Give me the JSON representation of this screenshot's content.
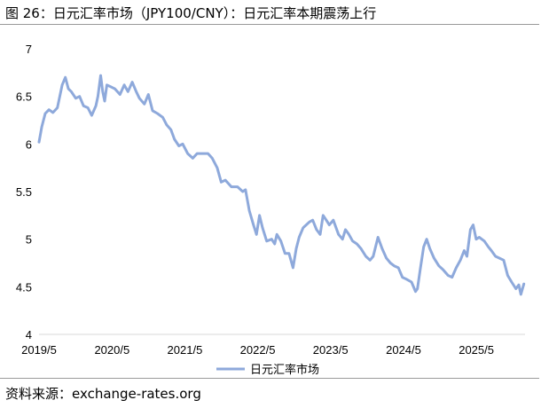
{
  "page": {
    "title": "图 26：日元汇率市场（JPY100/CNY）：日元汇率本期震荡上行",
    "source": "资料来源：exchange-rates.org"
  },
  "chart_data": {
    "type": "line",
    "title": "",
    "xlabel": "",
    "ylabel": "",
    "ylim": [
      4,
      7
    ],
    "y_ticks": [
      "4",
      "4.5",
      "5",
      "5.5",
      "6",
      "6.5",
      "7"
    ],
    "x_ticks": [
      "2019/5",
      "2020/5",
      "2021/5",
      "2022/5",
      "2023/5",
      "2024/5",
      "2025/5"
    ],
    "x_range": [
      "2019-05",
      "2025-12"
    ],
    "legend": {
      "position": "bottom"
    },
    "grid": false,
    "colors": {
      "line": "#8ea9db",
      "axis": "#d9d9d9",
      "text": "#000000"
    },
    "series": [
      {
        "name": "日元汇率市场",
        "points": [
          [
            "2019-05-01",
            6.02
          ],
          [
            "2019-05-15",
            6.18
          ],
          [
            "2019-06-01",
            6.32
          ],
          [
            "2019-06-20",
            6.36
          ],
          [
            "2019-07-10",
            6.33
          ],
          [
            "2019-08-01",
            6.38
          ],
          [
            "2019-08-25",
            6.62
          ],
          [
            "2019-09-10",
            6.7
          ],
          [
            "2019-09-25",
            6.58
          ],
          [
            "2019-10-10",
            6.55
          ],
          [
            "2019-11-01",
            6.48
          ],
          [
            "2019-11-20",
            6.5
          ],
          [
            "2019-12-10",
            6.4
          ],
          [
            "2020-01-01",
            6.38
          ],
          [
            "2020-01-20",
            6.3
          ],
          [
            "2020-02-10",
            6.4
          ],
          [
            "2020-02-20",
            6.5
          ],
          [
            "2020-03-05",
            6.72
          ],
          [
            "2020-03-15",
            6.55
          ],
          [
            "2020-03-25",
            6.45
          ],
          [
            "2020-04-05",
            6.62
          ],
          [
            "2020-04-25",
            6.6
          ],
          [
            "2020-05-15",
            6.58
          ],
          [
            "2020-06-10",
            6.52
          ],
          [
            "2020-07-01",
            6.62
          ],
          [
            "2020-07-20",
            6.55
          ],
          [
            "2020-08-10",
            6.65
          ],
          [
            "2020-08-30",
            6.55
          ],
          [
            "2020-09-15",
            6.48
          ],
          [
            "2020-10-10",
            6.42
          ],
          [
            "2020-10-30",
            6.52
          ],
          [
            "2020-11-20",
            6.35
          ],
          [
            "2020-12-15",
            6.32
          ],
          [
            "2021-01-10",
            6.28
          ],
          [
            "2021-01-30",
            6.2
          ],
          [
            "2021-02-20",
            6.15
          ],
          [
            "2021-03-10",
            6.05
          ],
          [
            "2021-04-01",
            5.98
          ],
          [
            "2021-04-20",
            6.0
          ],
          [
            "2021-05-15",
            5.9
          ],
          [
            "2021-06-10",
            5.85
          ],
          [
            "2021-07-01",
            5.9
          ],
          [
            "2021-08-01",
            5.9
          ],
          [
            "2021-08-25",
            5.9
          ],
          [
            "2021-09-15",
            5.85
          ],
          [
            "2021-10-10",
            5.75
          ],
          [
            "2021-10-30",
            5.6
          ],
          [
            "2021-11-20",
            5.62
          ],
          [
            "2021-12-20",
            5.55
          ],
          [
            "2022-01-20",
            5.55
          ],
          [
            "2022-02-15",
            5.5
          ],
          [
            "2022-03-01",
            5.52
          ],
          [
            "2022-03-20",
            5.3
          ],
          [
            "2022-04-10",
            5.15
          ],
          [
            "2022-04-25",
            5.05
          ],
          [
            "2022-05-10",
            5.25
          ],
          [
            "2022-05-25",
            5.12
          ],
          [
            "2022-06-15",
            4.98
          ],
          [
            "2022-07-10",
            5.0
          ],
          [
            "2022-07-25",
            4.95
          ],
          [
            "2022-08-05",
            5.05
          ],
          [
            "2022-08-25",
            4.98
          ],
          [
            "2022-09-15",
            4.85
          ],
          [
            "2022-10-05",
            4.85
          ],
          [
            "2022-10-25",
            4.7
          ],
          [
            "2022-11-10",
            4.9
          ],
          [
            "2022-11-25",
            5.02
          ],
          [
            "2022-12-15",
            5.12
          ],
          [
            "2023-01-15",
            5.18
          ],
          [
            "2023-02-01",
            5.2
          ],
          [
            "2023-02-20",
            5.1
          ],
          [
            "2023-03-10",
            5.05
          ],
          [
            "2023-03-25",
            5.25
          ],
          [
            "2023-04-10",
            5.2
          ],
          [
            "2023-04-25",
            5.15
          ],
          [
            "2023-05-15",
            5.2
          ],
          [
            "2023-06-10",
            5.05
          ],
          [
            "2023-06-30",
            5.0
          ],
          [
            "2023-07-15",
            5.1
          ],
          [
            "2023-08-01",
            5.05
          ],
          [
            "2023-08-20",
            4.98
          ],
          [
            "2023-09-10",
            4.95
          ],
          [
            "2023-10-01",
            4.9
          ],
          [
            "2023-10-25",
            4.82
          ],
          [
            "2023-11-15",
            4.78
          ],
          [
            "2023-12-01",
            4.82
          ],
          [
            "2023-12-25",
            5.02
          ],
          [
            "2024-01-15",
            4.9
          ],
          [
            "2024-02-05",
            4.8
          ],
          [
            "2024-02-25",
            4.75
          ],
          [
            "2024-03-15",
            4.72
          ],
          [
            "2024-04-05",
            4.7
          ],
          [
            "2024-04-25",
            4.6
          ],
          [
            "2024-05-15",
            4.58
          ],
          [
            "2024-06-10",
            4.55
          ],
          [
            "2024-06-30",
            4.45
          ],
          [
            "2024-07-10",
            4.48
          ],
          [
            "2024-07-25",
            4.7
          ],
          [
            "2024-08-10",
            4.92
          ],
          [
            "2024-08-25",
            5.0
          ],
          [
            "2024-09-10",
            4.9
          ],
          [
            "2024-10-01",
            4.8
          ],
          [
            "2024-10-25",
            4.72
          ],
          [
            "2024-11-15",
            4.68
          ],
          [
            "2024-12-10",
            4.62
          ],
          [
            "2024-12-30",
            4.6
          ],
          [
            "2025-01-20",
            4.7
          ],
          [
            "2025-02-10",
            4.78
          ],
          [
            "2025-03-01",
            4.88
          ],
          [
            "2025-03-15",
            4.82
          ],
          [
            "2025-04-01",
            5.1
          ],
          [
            "2025-04-15",
            5.15
          ],
          [
            "2025-04-30",
            5.0
          ],
          [
            "2025-05-15",
            5.02
          ],
          [
            "2025-06-10",
            4.98
          ],
          [
            "2025-06-30",
            4.92
          ],
          [
            "2025-07-15",
            4.88
          ],
          [
            "2025-08-05",
            4.82
          ],
          [
            "2025-08-25",
            4.8
          ],
          [
            "2025-09-15",
            4.78
          ],
          [
            "2025-10-05",
            4.62
          ],
          [
            "2025-10-25",
            4.55
          ],
          [
            "2025-11-15",
            4.48
          ],
          [
            "2025-11-30",
            4.52
          ],
          [
            "2025-12-10",
            4.42
          ],
          [
            "2025-12-25",
            4.53
          ]
        ]
      }
    ]
  }
}
